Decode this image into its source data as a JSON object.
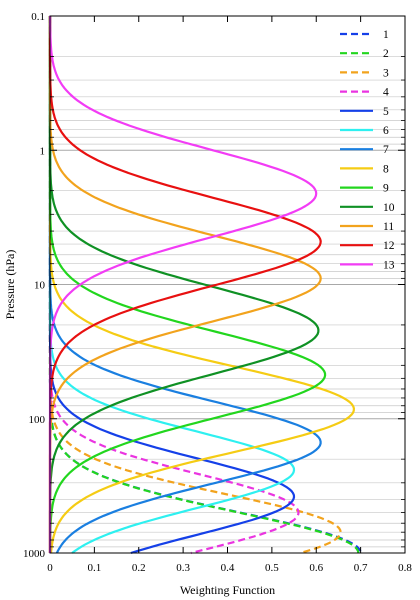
{
  "chart_data": {
    "type": "line",
    "title": "",
    "xlabel": "Weighting Function",
    "ylabel": "Pressure (hPa)",
    "xlim": [
      0,
      0.8
    ],
    "ylim": [
      1000,
      0.1
    ],
    "yscale": "log",
    "x_ticks": [
      "0",
      "0.1",
      "0.2",
      "0.3",
      "0.4",
      "0.5",
      "0.6",
      "0.7",
      "0.8"
    ],
    "y_ticks": [
      "0.1",
      "1",
      "10",
      "100",
      "1000"
    ],
    "grid": "horizontal minor log gridlines",
    "legend_position": "top-right",
    "series": [
      {
        "name": "1",
        "color": "#1540e8",
        "style": "dashed",
        "peak_pressure": 1000,
        "peak_value": 0.7,
        "width": 0.43
      },
      {
        "name": "2",
        "color": "#22d61e",
        "style": "dashed",
        "peak_pressure": 1000,
        "peak_value": 0.695,
        "width": 0.43
      },
      {
        "name": "3",
        "color": "#f2a31d",
        "style": "dashed",
        "peak_pressure": 700,
        "peak_value": 0.655,
        "width": 0.4
      },
      {
        "name": "4",
        "color": "#ea34e0",
        "style": "dashed",
        "peak_pressure": 500,
        "peak_value": 0.56,
        "width": 0.4
      },
      {
        "name": "5",
        "color": "#1540e8",
        "style": "solid",
        "peak_pressure": 380,
        "peak_value": 0.55,
        "width": 0.4
      },
      {
        "name": "6",
        "color": "#2ef0f0",
        "style": "solid",
        "peak_pressure": 240,
        "peak_value": 0.55,
        "width": 0.4
      },
      {
        "name": "7",
        "color": "#1a7fe0",
        "style": "solid",
        "peak_pressure": 150,
        "peak_value": 0.61,
        "width": 0.43
      },
      {
        "name": "8",
        "color": "#f5cc14",
        "style": "solid",
        "peak_pressure": 85,
        "peak_value": 0.685,
        "width": 0.45
      },
      {
        "name": "9",
        "color": "#22d61e",
        "style": "solid",
        "peak_pressure": 47,
        "peak_value": 0.62,
        "width": 0.45
      },
      {
        "name": "10",
        "color": "#0f9124",
        "style": "solid",
        "peak_pressure": 22,
        "peak_value": 0.605,
        "width": 0.46
      },
      {
        "name": "11",
        "color": "#f2a31d",
        "style": "solid",
        "peak_pressure": 9,
        "peak_value": 0.61,
        "width": 0.45
      },
      {
        "name": "12",
        "color": "#e81010",
        "style": "solid",
        "peak_pressure": 4.8,
        "peak_value": 0.61,
        "width": 0.46
      },
      {
        "name": "13",
        "color": "#f23cf5",
        "style": "solid",
        "peak_pressure": 2.1,
        "peak_value": 0.6,
        "width": 0.46
      }
    ]
  }
}
